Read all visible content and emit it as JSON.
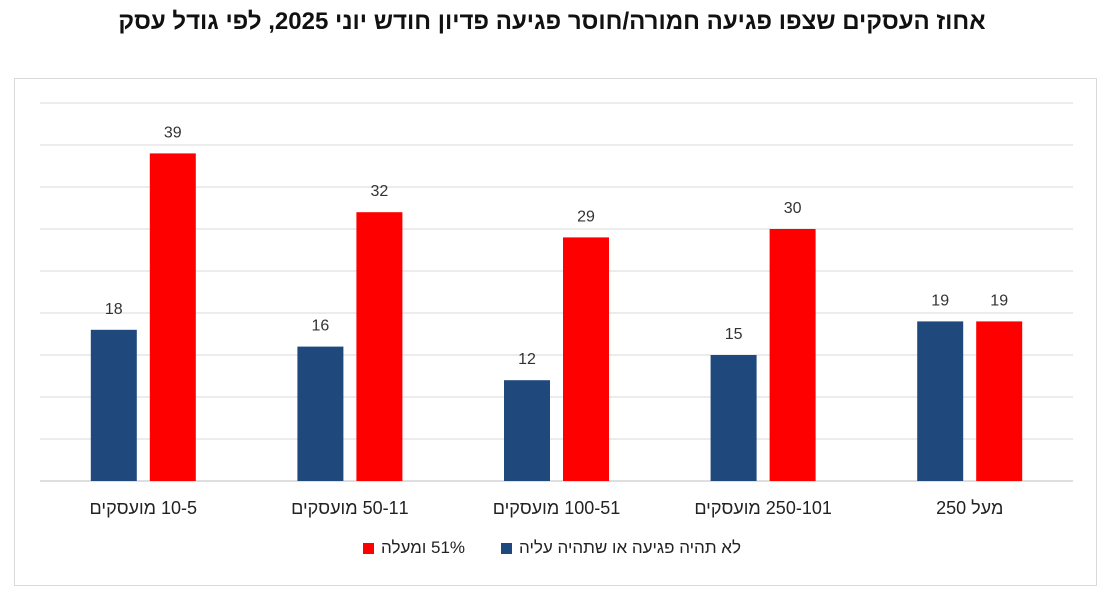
{
  "chart_data": {
    "type": "bar",
    "title": "אחוז העסקים שצפו פגיעה חמורה/חוסר פגיעה פדיון חודש יוני 2025, לפי גודל עסק",
    "categories": [
      "10-5  מועסקים",
      "50-11  מועסקים",
      "100-51  מועסקים",
      "250-101  מועסקים",
      "מעל 250"
    ],
    "series": [
      {
        "name": "לא תהיה פגיעה או שתהיה עליה",
        "color": "#1f497d",
        "values": [
          18,
          16,
          12,
          15,
          19
        ]
      },
      {
        "name": "51% ומעלה",
        "color": "#ff0000",
        "values": [
          39,
          32,
          29,
          30,
          19
        ]
      }
    ],
    "ylim": [
      0,
      45
    ],
    "grid": true,
    "legend_position": "bottom"
  }
}
